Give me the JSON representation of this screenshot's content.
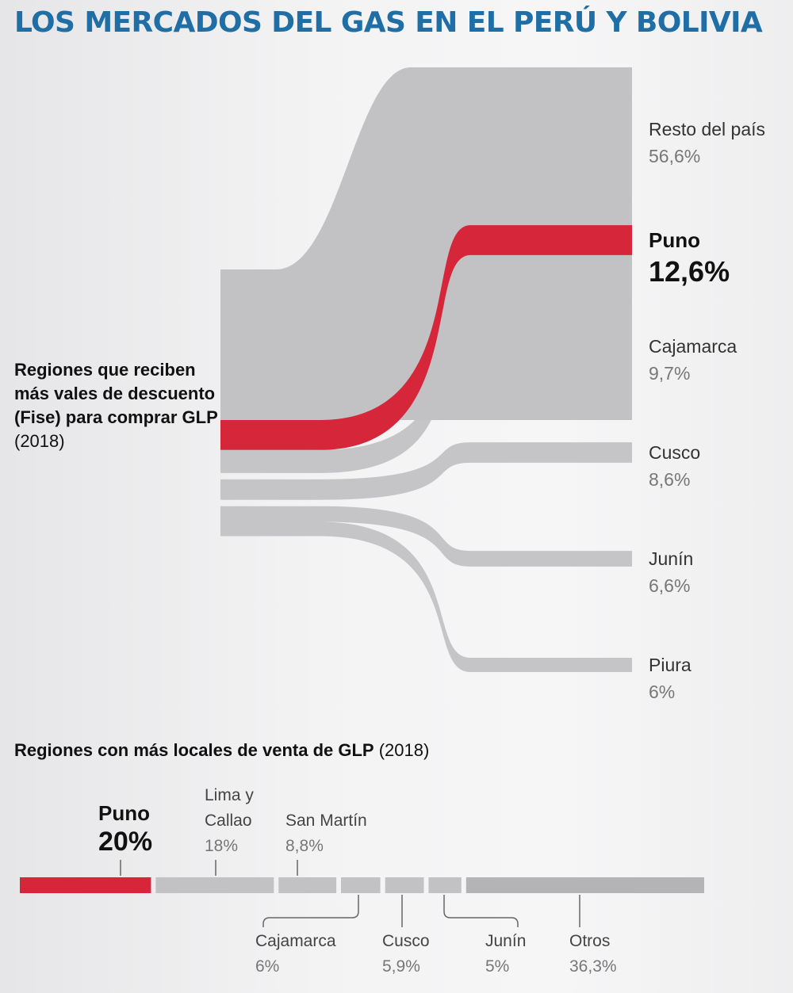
{
  "header": {
    "title": "LOS MERCADOS DEL GAS EN EL PERÚ Y BOLIVIA"
  },
  "sankey": {
    "intro_bold": "Regiones que reciben más vales de descuento (Fise) para comprar GLP",
    "intro_year": "(2018)"
  },
  "bars": {
    "title_bold": "Regiones con más locales de venta de GLP",
    "title_year": "(2018)"
  },
  "colors": {
    "highlight": "#d6263a",
    "gray": "#c2c2c4",
    "dark_gray": "#b4b4b6",
    "title": "#1f6fa6"
  },
  "chart_data": [
    {
      "type": "sankey",
      "title": "Regiones que reciben más vales de descuento (Fise) para comprar GLP (2018)",
      "series": [
        {
          "name": "Resto del país",
          "pct_label": "56,6%",
          "value": 56.6
        },
        {
          "name": "Puno",
          "pct_label": "12,6%",
          "value": 12.6,
          "highlight": true
        },
        {
          "name": "Cajamarca",
          "pct_label": "9,7%",
          "value": 9.7
        },
        {
          "name": "Cusco",
          "pct_label": "8,6%",
          "value": 8.6
        },
        {
          "name": "Junín",
          "pct_label": "6,6%",
          "value": 6.6
        },
        {
          "name": "Piura",
          "pct_label": "6%",
          "value": 6.0
        }
      ]
    },
    {
      "type": "bar",
      "title": "Regiones con más locales de venta de GLP (2018)",
      "series": [
        {
          "name": "Puno",
          "pct_label": "20%",
          "value": 20,
          "highlight": true
        },
        {
          "name": "Lima y Callao",
          "pct_label": "18%",
          "value": 18
        },
        {
          "name": "San Martín",
          "pct_label": "8,8%",
          "value": 8.8
        },
        {
          "name": "Cajamarca",
          "pct_label": "6%",
          "value": 6
        },
        {
          "name": "Cusco",
          "pct_label": "5,9%",
          "value": 5.9
        },
        {
          "name": "Junín",
          "pct_label": "5%",
          "value": 5
        },
        {
          "name": "Otros",
          "pct_label": "36,3%",
          "value": 36.3
        }
      ]
    }
  ]
}
